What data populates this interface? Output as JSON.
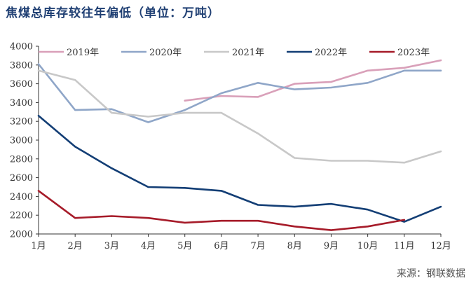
{
  "title": "焦煤总库存较往年偏低（单位：万吨）",
  "source": "来源：钢联数据",
  "chart_data": {
    "type": "line",
    "title": "焦煤总库存较往年偏低（单位：万吨）",
    "xlabel": "",
    "ylabel": "",
    "categories": [
      "1月",
      "2月",
      "3月",
      "4月",
      "5月",
      "6月",
      "7月",
      "8月",
      "9月",
      "10月",
      "11月",
      "12月"
    ],
    "ylim": [
      2000,
      4000
    ],
    "yticks": [
      2000,
      2200,
      2400,
      2600,
      2800,
      3000,
      3200,
      3400,
      3600,
      3800,
      4000
    ],
    "legend_position": "top",
    "series": [
      {
        "name": "2019年",
        "color": "#d9a0b9",
        "values": [
          null,
          null,
          null,
          null,
          3420,
          3470,
          3460,
          3600,
          3620,
          3740,
          3770,
          3850
        ]
      },
      {
        "name": "2020年",
        "color": "#8fa6c8",
        "values": [
          3810,
          3320,
          3330,
          3190,
          3320,
          3500,
          3610,
          3540,
          3560,
          3610,
          3740,
          3740
        ]
      },
      {
        "name": "2021年",
        "color": "#c8c8c8",
        "values": [
          3740,
          3640,
          3290,
          3250,
          3290,
          3290,
          3070,
          2810,
          2780,
          2780,
          2760,
          2880
        ]
      },
      {
        "name": "2022年",
        "color": "#133e75",
        "values": [
          3260,
          2930,
          2700,
          2500,
          2490,
          2460,
          2310,
          2290,
          2320,
          2260,
          2130,
          2290
        ]
      },
      {
        "name": "2023年",
        "color": "#a61b29",
        "values": [
          2460,
          2170,
          2190,
          2170,
          2120,
          2140,
          2140,
          2080,
          2040,
          2080,
          2150,
          null
        ]
      }
    ]
  }
}
